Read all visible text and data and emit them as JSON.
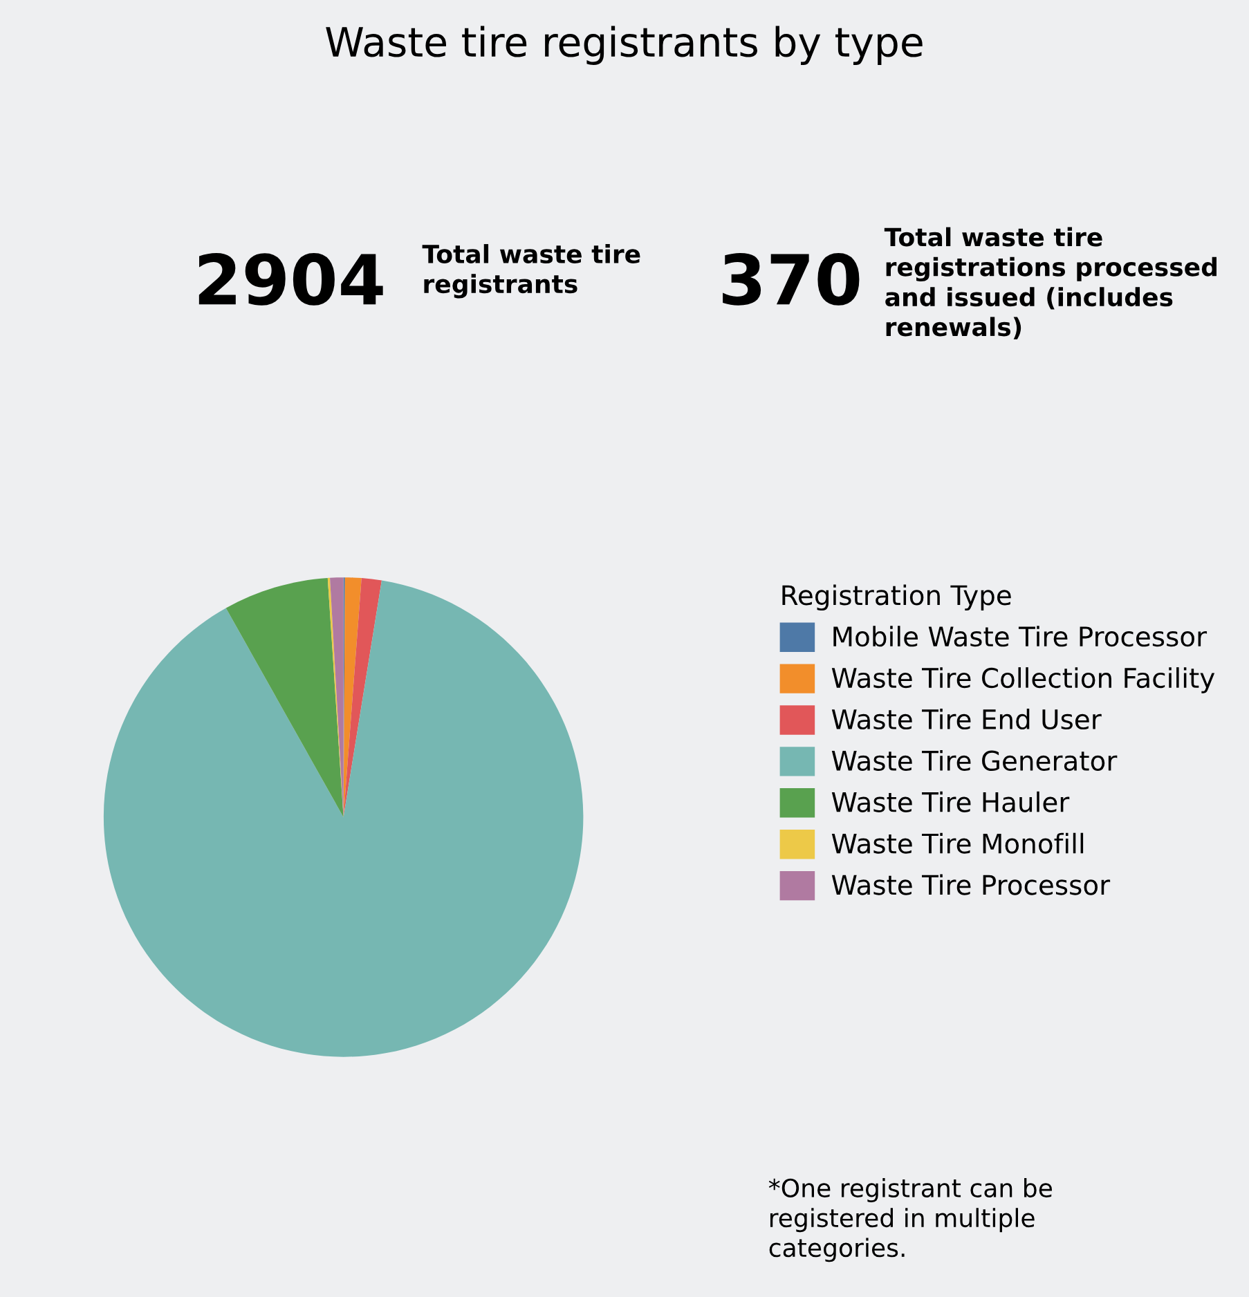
{
  "chart_data": {
    "type": "pie",
    "title": "Waste tire registrants by type",
    "legend_title": "Registration Type",
    "legend": "right",
    "categories": [
      "Mobile Waste Tire Processor",
      "Waste Tire Collection Facility",
      "Waste Tire End User",
      "Waste Tire Generator",
      "Waste Tire Hauler",
      "Waste Tire Monofill",
      "Waste Tire Processor"
    ],
    "values": [
      0.1,
      1.1,
      1.35,
      89.3,
      7.1,
      0.15,
      0.9
    ],
    "colors": [
      "#4e79a7",
      "#f28e2b",
      "#e15759",
      "#76b7b2",
      "#59a14f",
      "#edc948",
      "#b07aa1"
    ],
    "annotations": [
      "2904",
      "Total waste tire\nregistrants",
      "370",
      "Total waste tire\nregistrations processed\nand issued (includes\nrenewals)",
      "*One registrant can be\nregistered in multiple\ncategories."
    ]
  }
}
